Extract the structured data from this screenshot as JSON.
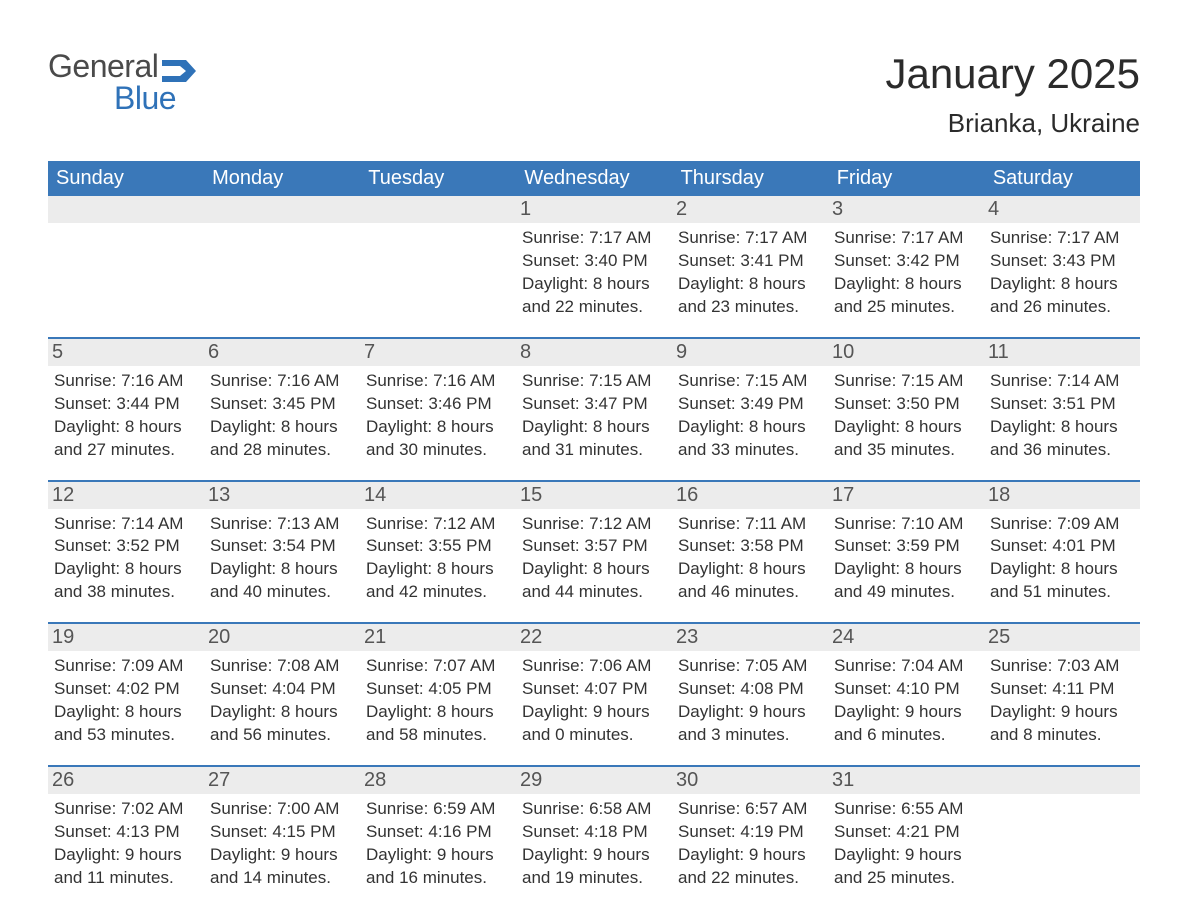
{
  "logo": {
    "general": "General",
    "blue": "Blue"
  },
  "title": "January 2025",
  "location": "Brianka, Ukraine",
  "colors": {
    "header_bg": "#3a78b9",
    "header_text": "#ffffff",
    "daynum_bg": "#ececec",
    "week_border": "#3a78b9",
    "text": "#333333",
    "logo_gray": "#4a4a4a",
    "logo_blue": "#2f72b8",
    "background": "#ffffff"
  },
  "weekdays": [
    "Sunday",
    "Monday",
    "Tuesday",
    "Wednesday",
    "Thursday",
    "Friday",
    "Saturday"
  ],
  "weeks": [
    [
      {
        "n": "",
        "sunrise": "",
        "sunset": "",
        "day1": "",
        "day2": ""
      },
      {
        "n": "",
        "sunrise": "",
        "sunset": "",
        "day1": "",
        "day2": ""
      },
      {
        "n": "",
        "sunrise": "",
        "sunset": "",
        "day1": "",
        "day2": ""
      },
      {
        "n": "1",
        "sunrise": "Sunrise: 7:17 AM",
        "sunset": "Sunset: 3:40 PM",
        "day1": "Daylight: 8 hours",
        "day2": "and 22 minutes."
      },
      {
        "n": "2",
        "sunrise": "Sunrise: 7:17 AM",
        "sunset": "Sunset: 3:41 PM",
        "day1": "Daylight: 8 hours",
        "day2": "and 23 minutes."
      },
      {
        "n": "3",
        "sunrise": "Sunrise: 7:17 AM",
        "sunset": "Sunset: 3:42 PM",
        "day1": "Daylight: 8 hours",
        "day2": "and 25 minutes."
      },
      {
        "n": "4",
        "sunrise": "Sunrise: 7:17 AM",
        "sunset": "Sunset: 3:43 PM",
        "day1": "Daylight: 8 hours",
        "day2": "and 26 minutes."
      }
    ],
    [
      {
        "n": "5",
        "sunrise": "Sunrise: 7:16 AM",
        "sunset": "Sunset: 3:44 PM",
        "day1": "Daylight: 8 hours",
        "day2": "and 27 minutes."
      },
      {
        "n": "6",
        "sunrise": "Sunrise: 7:16 AM",
        "sunset": "Sunset: 3:45 PM",
        "day1": "Daylight: 8 hours",
        "day2": "and 28 minutes."
      },
      {
        "n": "7",
        "sunrise": "Sunrise: 7:16 AM",
        "sunset": "Sunset: 3:46 PM",
        "day1": "Daylight: 8 hours",
        "day2": "and 30 minutes."
      },
      {
        "n": "8",
        "sunrise": "Sunrise: 7:15 AM",
        "sunset": "Sunset: 3:47 PM",
        "day1": "Daylight: 8 hours",
        "day2": "and 31 minutes."
      },
      {
        "n": "9",
        "sunrise": "Sunrise: 7:15 AM",
        "sunset": "Sunset: 3:49 PM",
        "day1": "Daylight: 8 hours",
        "day2": "and 33 minutes."
      },
      {
        "n": "10",
        "sunrise": "Sunrise: 7:15 AM",
        "sunset": "Sunset: 3:50 PM",
        "day1": "Daylight: 8 hours",
        "day2": "and 35 minutes."
      },
      {
        "n": "11",
        "sunrise": "Sunrise: 7:14 AM",
        "sunset": "Sunset: 3:51 PM",
        "day1": "Daylight: 8 hours",
        "day2": "and 36 minutes."
      }
    ],
    [
      {
        "n": "12",
        "sunrise": "Sunrise: 7:14 AM",
        "sunset": "Sunset: 3:52 PM",
        "day1": "Daylight: 8 hours",
        "day2": "and 38 minutes."
      },
      {
        "n": "13",
        "sunrise": "Sunrise: 7:13 AM",
        "sunset": "Sunset: 3:54 PM",
        "day1": "Daylight: 8 hours",
        "day2": "and 40 minutes."
      },
      {
        "n": "14",
        "sunrise": "Sunrise: 7:12 AM",
        "sunset": "Sunset: 3:55 PM",
        "day1": "Daylight: 8 hours",
        "day2": "and 42 minutes."
      },
      {
        "n": "15",
        "sunrise": "Sunrise: 7:12 AM",
        "sunset": "Sunset: 3:57 PM",
        "day1": "Daylight: 8 hours",
        "day2": "and 44 minutes."
      },
      {
        "n": "16",
        "sunrise": "Sunrise: 7:11 AM",
        "sunset": "Sunset: 3:58 PM",
        "day1": "Daylight: 8 hours",
        "day2": "and 46 minutes."
      },
      {
        "n": "17",
        "sunrise": "Sunrise: 7:10 AM",
        "sunset": "Sunset: 3:59 PM",
        "day1": "Daylight: 8 hours",
        "day2": "and 49 minutes."
      },
      {
        "n": "18",
        "sunrise": "Sunrise: 7:09 AM",
        "sunset": "Sunset: 4:01 PM",
        "day1": "Daylight: 8 hours",
        "day2": "and 51 minutes."
      }
    ],
    [
      {
        "n": "19",
        "sunrise": "Sunrise: 7:09 AM",
        "sunset": "Sunset: 4:02 PM",
        "day1": "Daylight: 8 hours",
        "day2": "and 53 minutes."
      },
      {
        "n": "20",
        "sunrise": "Sunrise: 7:08 AM",
        "sunset": "Sunset: 4:04 PM",
        "day1": "Daylight: 8 hours",
        "day2": "and 56 minutes."
      },
      {
        "n": "21",
        "sunrise": "Sunrise: 7:07 AM",
        "sunset": "Sunset: 4:05 PM",
        "day1": "Daylight: 8 hours",
        "day2": "and 58 minutes."
      },
      {
        "n": "22",
        "sunrise": "Sunrise: 7:06 AM",
        "sunset": "Sunset: 4:07 PM",
        "day1": "Daylight: 9 hours",
        "day2": "and 0 minutes."
      },
      {
        "n": "23",
        "sunrise": "Sunrise: 7:05 AM",
        "sunset": "Sunset: 4:08 PM",
        "day1": "Daylight: 9 hours",
        "day2": "and 3 minutes."
      },
      {
        "n": "24",
        "sunrise": "Sunrise: 7:04 AM",
        "sunset": "Sunset: 4:10 PM",
        "day1": "Daylight: 9 hours",
        "day2": "and 6 minutes."
      },
      {
        "n": "25",
        "sunrise": "Sunrise: 7:03 AM",
        "sunset": "Sunset: 4:11 PM",
        "day1": "Daylight: 9 hours",
        "day2": "and 8 minutes."
      }
    ],
    [
      {
        "n": "26",
        "sunrise": "Sunrise: 7:02 AM",
        "sunset": "Sunset: 4:13 PM",
        "day1": "Daylight: 9 hours",
        "day2": "and 11 minutes."
      },
      {
        "n": "27",
        "sunrise": "Sunrise: 7:00 AM",
        "sunset": "Sunset: 4:15 PM",
        "day1": "Daylight: 9 hours",
        "day2": "and 14 minutes."
      },
      {
        "n": "28",
        "sunrise": "Sunrise: 6:59 AM",
        "sunset": "Sunset: 4:16 PM",
        "day1": "Daylight: 9 hours",
        "day2": "and 16 minutes."
      },
      {
        "n": "29",
        "sunrise": "Sunrise: 6:58 AM",
        "sunset": "Sunset: 4:18 PM",
        "day1": "Daylight: 9 hours",
        "day2": "and 19 minutes."
      },
      {
        "n": "30",
        "sunrise": "Sunrise: 6:57 AM",
        "sunset": "Sunset: 4:19 PM",
        "day1": "Daylight: 9 hours",
        "day2": "and 22 minutes."
      },
      {
        "n": "31",
        "sunrise": "Sunrise: 6:55 AM",
        "sunset": "Sunset: 4:21 PM",
        "day1": "Daylight: 9 hours",
        "day2": "and 25 minutes."
      },
      {
        "n": "",
        "sunrise": "",
        "sunset": "",
        "day1": "",
        "day2": ""
      }
    ]
  ]
}
